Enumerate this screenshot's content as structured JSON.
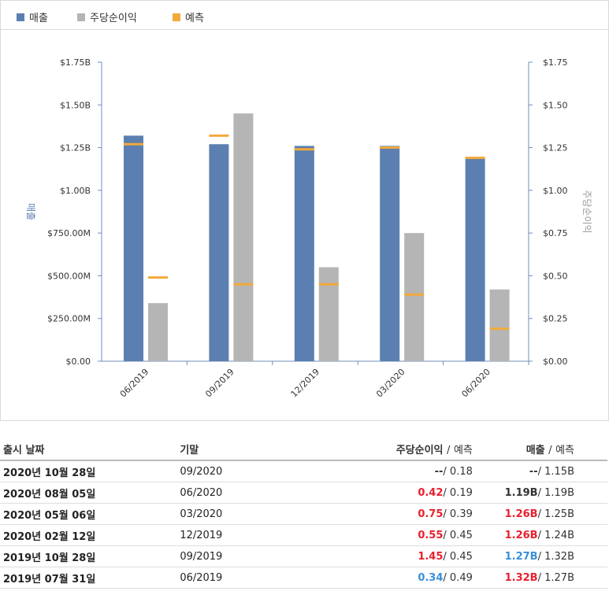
{
  "legend": [
    {
      "label": "매출",
      "color": "#5b7fb0"
    },
    {
      "label": "주당순이익",
      "color": "#b5b5b5"
    },
    {
      "label": "예측",
      "color": "#f2a93b"
    }
  ],
  "chart_data": {
    "type": "bar",
    "categories": [
      "06/2019",
      "09/2019",
      "12/2019",
      "03/2020",
      "06/2020"
    ],
    "series": [
      {
        "name": "매출",
        "axis": "left",
        "color": "#5b7fb0",
        "values": [
          1.32,
          1.27,
          1.26,
          1.26,
          1.19
        ]
      },
      {
        "name": "주당순이익",
        "axis": "right",
        "color": "#b5b5b5",
        "values": [
          0.34,
          1.45,
          0.55,
          0.75,
          0.42
        ]
      }
    ],
    "forecast": {
      "name": "예측",
      "color": "#f2a93b",
      "revenue": [
        1.27,
        1.32,
        1.24,
        1.25,
        1.19
      ],
      "eps": [
        0.49,
        0.45,
        0.45,
        0.39,
        0.19
      ]
    },
    "ylabel_left": "매출",
    "ylabel_right": "주당순이익",
    "ylim_left": [
      0,
      1.75
    ],
    "ylim_right": [
      0,
      1.75
    ],
    "left_ticks": [
      "$0.00",
      "$250.00M",
      "$500.00M",
      "$750.00M",
      "$1.00B",
      "$1.25B",
      "$1.50B",
      "$1.75B"
    ],
    "right_ticks": [
      "$0.00",
      "$0.25",
      "$0.50",
      "$0.75",
      "$1.00",
      "$1.25",
      "$1.50",
      "$1.75"
    ]
  },
  "table": {
    "headers": {
      "date": "출시 날짜",
      "period": "기말",
      "eps": "주당순이익",
      "eps_fc": "예측",
      "rev": "매출",
      "rev_fc": "예측",
      "sep": "/"
    },
    "rows": [
      {
        "date": "2020년 10월 28일",
        "period": "09/2020",
        "eps": "--",
        "eps_fc": "0.18",
        "rev": "--",
        "rev_fc": "1.15B",
        "eps_cls": "neutral",
        "rev_cls": "neutral"
      },
      {
        "date": "2020년 08월 05일",
        "period": "06/2020",
        "eps": "0.42",
        "eps_fc": "0.19",
        "rev": "1.19B",
        "rev_fc": "1.19B",
        "eps_cls": "beat",
        "rev_cls": "neutral"
      },
      {
        "date": "2020년 05월 06일",
        "period": "03/2020",
        "eps": "0.75",
        "eps_fc": "0.39",
        "rev": "1.26B",
        "rev_fc": "1.25B",
        "eps_cls": "beat",
        "rev_cls": "beat"
      },
      {
        "date": "2020년 02월 12일",
        "period": "12/2019",
        "eps": "0.55",
        "eps_fc": "0.45",
        "rev": "1.26B",
        "rev_fc": "1.24B",
        "eps_cls": "beat",
        "rev_cls": "beat"
      },
      {
        "date": "2019년 10월 28일",
        "period": "09/2019",
        "eps": "1.45",
        "eps_fc": "0.45",
        "rev": "1.27B",
        "rev_fc": "1.32B",
        "eps_cls": "beat",
        "rev_cls": "miss"
      },
      {
        "date": "2019년 07월 31일",
        "period": "06/2019",
        "eps": "0.34",
        "eps_fc": "0.49",
        "rev": "1.32B",
        "rev_fc": "1.27B",
        "eps_cls": "miss",
        "rev_cls": "beat"
      }
    ]
  }
}
